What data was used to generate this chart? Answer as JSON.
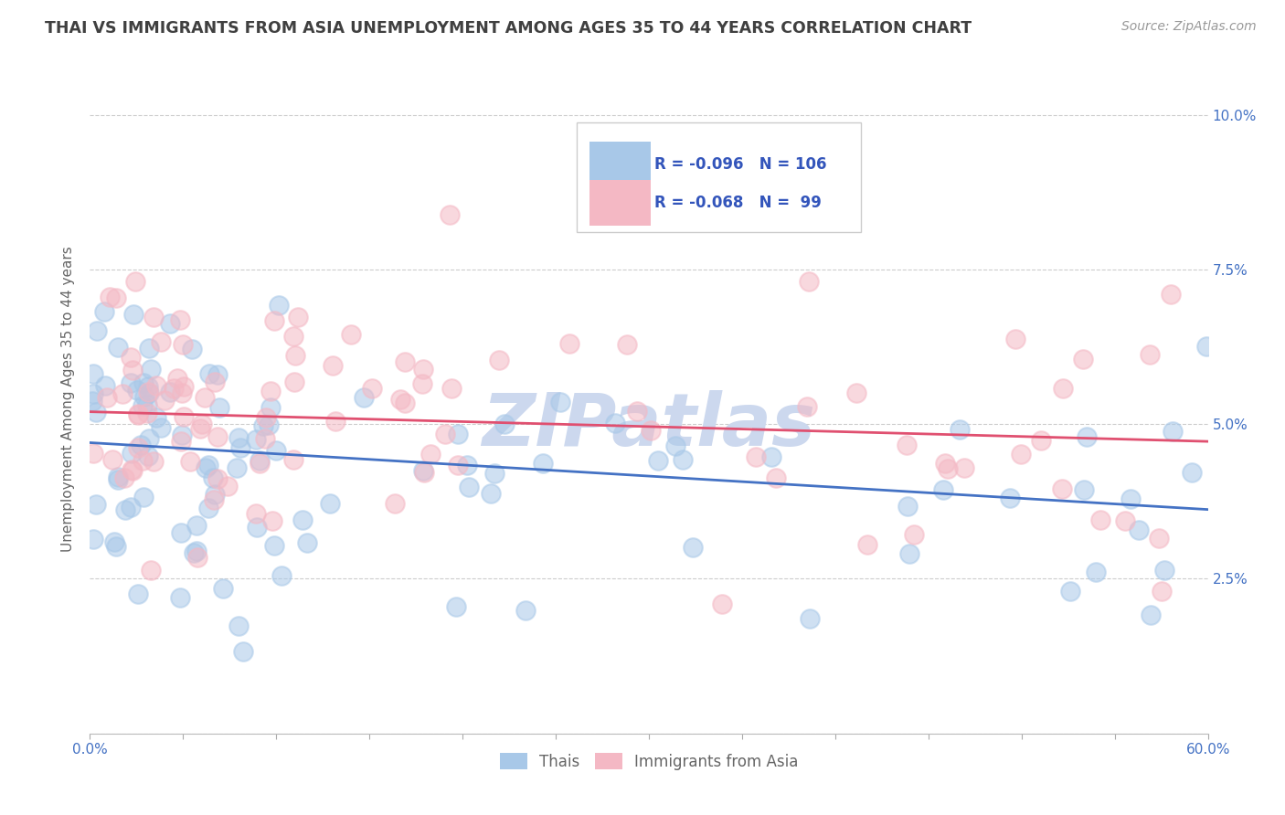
{
  "title": "THAI VS IMMIGRANTS FROM ASIA UNEMPLOYMENT AMONG AGES 35 TO 44 YEARS CORRELATION CHART",
  "source": "Source: ZipAtlas.com",
  "ylabel": "Unemployment Among Ages 35 to 44 years",
  "ytick_labels": [
    "",
    "2.5%",
    "5.0%",
    "7.5%",
    "10.0%"
  ],
  "ytick_values": [
    0.0,
    0.025,
    0.05,
    0.075,
    0.1
  ],
  "xlim": [
    0.0,
    0.6
  ],
  "ylim": [
    0.0,
    0.108
  ],
  "legend_label1": "Thais",
  "legend_label2": "Immigrants from Asia",
  "r1": "-0.096",
  "n1": "106",
  "r2": "-0.068",
  "n2": " 99",
  "blue_scatter_color": "#a8c8e8",
  "pink_scatter_color": "#f4b8c4",
  "blue_line_color": "#4472c4",
  "pink_line_color": "#e05070",
  "title_color": "#404040",
  "source_color": "#999999",
  "axis_label_color": "#4472c4",
  "tick_label_color": "#666666",
  "legend_text_color": "#3355bb",
  "watermark": "ZIPatlas",
  "watermark_color": "#ccd8ee",
  "background_color": "#ffffff",
  "grid_color": "#cccccc",
  "blue_intercept": 0.047,
  "blue_slope": -0.018,
  "pink_intercept": 0.052,
  "pink_slope": -0.008
}
